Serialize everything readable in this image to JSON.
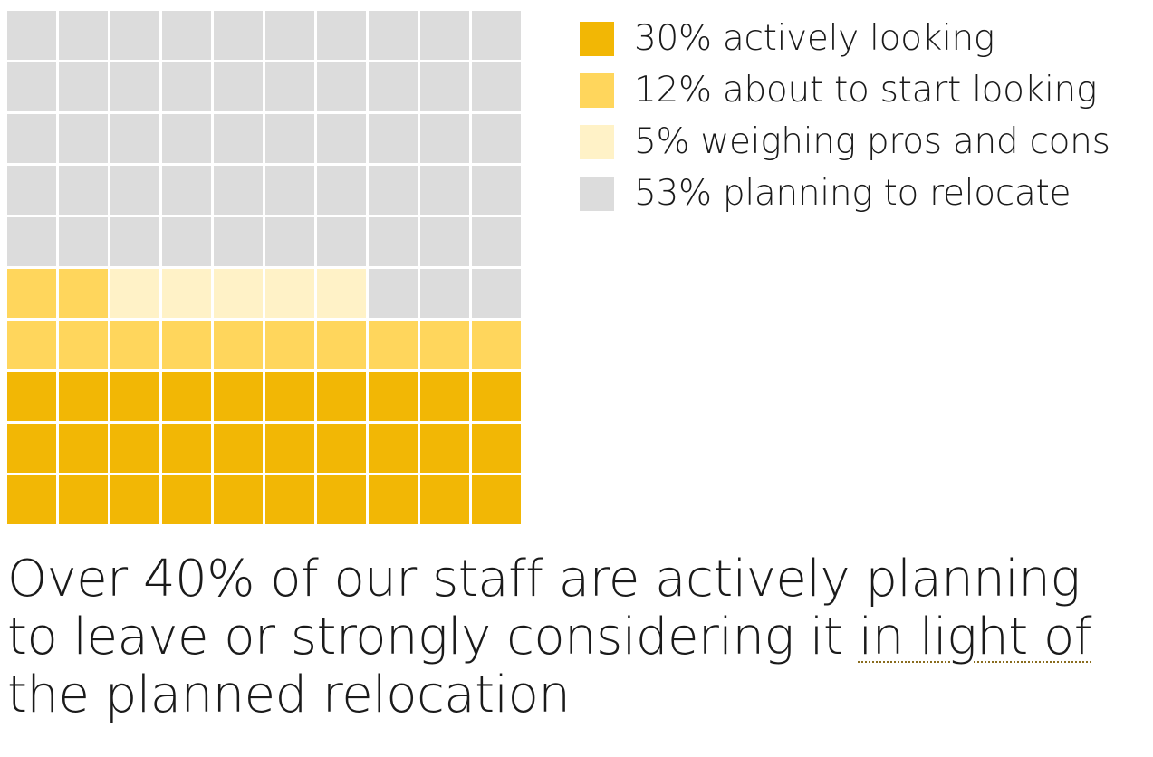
{
  "chart_data": {
    "type": "waffle",
    "grid": {
      "rows": 10,
      "cols": 10
    },
    "categories": [
      {
        "label": "30% actively looking",
        "value": 30,
        "color": "#f2b705"
      },
      {
        "label": "12% about to start looking",
        "value": 12,
        "color": "#ffd65c"
      },
      {
        "label": "5% weighing pros and cons",
        "value": 5,
        "color": "#fff2c7"
      },
      {
        "label": "53% planning to relocate",
        "value": 53,
        "color": "#dcdcdc"
      }
    ],
    "legend_position": "top-right"
  },
  "headline": {
    "before": "Over 40% of our staff are actively planning to leave or strongly considering it ",
    "marked": "in light of",
    "after": " the planned relocation"
  }
}
